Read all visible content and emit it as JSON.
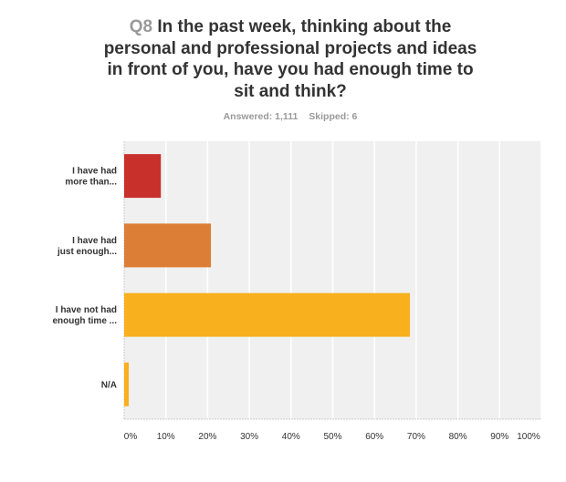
{
  "chart_data": {
    "type": "bar",
    "orientation": "horizontal",
    "question_number": "Q8",
    "title": "In the past week, thinking about the personal and professional projects and ideas in front of you, have you had enough time to sit and think?",
    "answered": "Answered: 1,111",
    "skipped": "Skipped: 6",
    "categories": [
      [
        "I have had",
        "more than..."
      ],
      [
        "I have had",
        "just enough..."
      ],
      [
        "I have not had",
        "enough time ..."
      ],
      [
        "N/A"
      ]
    ],
    "values": [
      8.8,
      20.8,
      68.5,
      1.1
    ],
    "colors": [
      "#c8312b",
      "#dd7e36",
      "#f8b01e",
      "#f8b01e"
    ],
    "xlim": [
      0,
      100
    ],
    "xticks": [
      "0%",
      "10%",
      "20%",
      "30%",
      "40%",
      "50%",
      "60%",
      "70%",
      "80%",
      "90%",
      "100%"
    ],
    "grid": true
  }
}
